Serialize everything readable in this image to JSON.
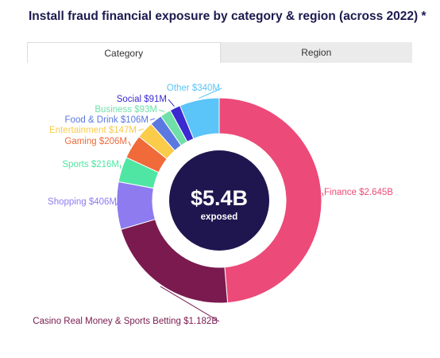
{
  "header": {
    "title": "Install fraud financial exposure by category & region (across 2022) *"
  },
  "tabs": [
    {
      "label": "Category",
      "active": true
    },
    {
      "label": "Region",
      "active": false
    }
  ],
  "center": {
    "value": "$5.4B",
    "caption": "exposed"
  },
  "chart_data": {
    "type": "pie",
    "title": "Install fraud financial exposure by category & region (across 2022) *",
    "total_label": "$5.4B",
    "unit": "USD millions",
    "slices": [
      {
        "label": "Finance",
        "display": "Finance $2.645B",
        "value": 2645,
        "color": "#ec4a78"
      },
      {
        "label": "Casino Real Money & Sports Betting",
        "display": "Casino Real Money & Sports Betting $1.182B",
        "value": 1182,
        "color": "#7a1a4f"
      },
      {
        "label": "Shopping",
        "display": "Shopping $406M",
        "value": 406,
        "color": "#8e7bf0"
      },
      {
        "label": "Sports",
        "display": "Sports $216M",
        "value": 216,
        "color": "#4fe6a3"
      },
      {
        "label": "Gaming",
        "display": "Gaming $206M",
        "value": 206,
        "color": "#f06a3a"
      },
      {
        "label": "Entertainment",
        "display": "Entertainment $147M",
        "value": 147,
        "color": "#fbcb4a"
      },
      {
        "label": "Food & Drink",
        "display": "Food & Drink $106M",
        "value": 106,
        "color": "#5a78e0"
      },
      {
        "label": "Business",
        "display": "Business $93M",
        "value": 93,
        "color": "#6fe0a8"
      },
      {
        "label": "Social",
        "display": "Social $91M",
        "value": 91,
        "color": "#3a2ad0"
      },
      {
        "label": "Other",
        "display": "Other $340M",
        "value": 340,
        "color": "#5bc4f8"
      }
    ]
  }
}
